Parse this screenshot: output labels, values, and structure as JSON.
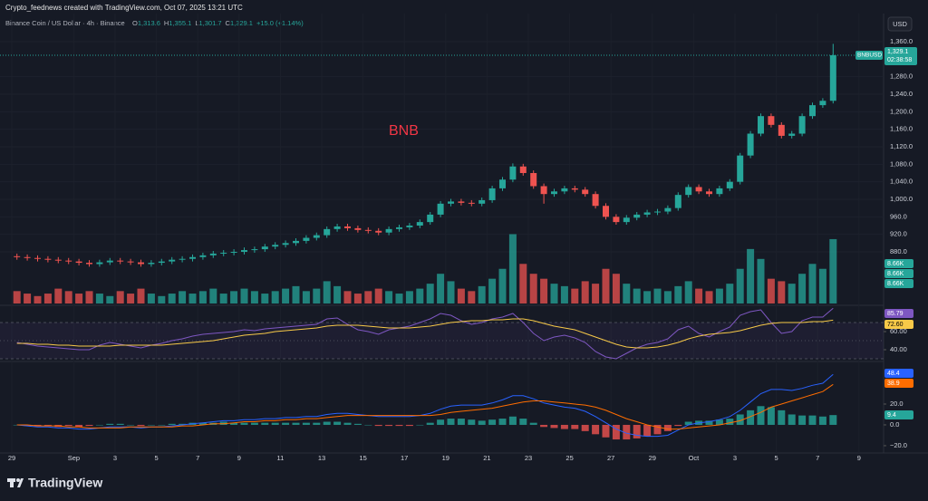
{
  "header": {
    "credit": "Crypto_feednews created with TradingView.com, Oct 07, 2025 13:21 UTC",
    "symbol": "Binance Coin / US Dollar · 4h · Binance",
    "ohlc": [
      {
        "key": "O",
        "value": "1,313.6"
      },
      {
        "key": "H",
        "value": "1,355.1"
      },
      {
        "key": "L",
        "value": "1,301.7"
      },
      {
        "key": "C",
        "value": "1,329.1"
      }
    ],
    "change": "+15.0 (+1.14%)",
    "currency": "USD"
  },
  "footer": {
    "logo": "TradingView"
  },
  "chart_data": [
    {
      "type": "candlestick",
      "annotation": "BNB",
      "up_color": "#26a69a",
      "down_color": "#ef5350",
      "categories": [
        "29",
        null,
        null,
        null,
        null,
        null,
        "Sep",
        null,
        null,
        null,
        "3",
        null,
        null,
        null,
        "5",
        null,
        null,
        null,
        "7",
        null,
        null,
        null,
        "9",
        null,
        null,
        null,
        "11",
        null,
        null,
        null,
        "13",
        null,
        null,
        null,
        "15",
        null,
        null,
        null,
        "17",
        null,
        null,
        null,
        "19",
        null,
        null,
        null,
        "21",
        null,
        null,
        null,
        "23",
        null,
        null,
        null,
        "25",
        null,
        null,
        null,
        "27",
        null,
        null,
        null,
        "29",
        null,
        null,
        null,
        "Oct",
        null,
        null,
        null,
        "3",
        null,
        null,
        null,
        "5",
        null,
        null,
        null,
        "7",
        null,
        null,
        null,
        "9",
        null
      ],
      "open": [
        870,
        868,
        866,
        864,
        862,
        860,
        858,
        855,
        852,
        856,
        860,
        858,
        856,
        852,
        855,
        858,
        862,
        864,
        868,
        872,
        876,
        878,
        880,
        884,
        886,
        892,
        896,
        900,
        905,
        912,
        918,
        932,
        938,
        934,
        930,
        928,
        924,
        932,
        936,
        940,
        948,
        965,
        990,
        995,
        992,
        990,
        998,
        1025,
        1045,
        1075,
        1060,
        1030,
        1012,
        1018,
        1025,
        1022,
        1012,
        985,
        960,
        948,
        958,
        965,
        970,
        972,
        980,
        1010,
        1028,
        1018,
        1012,
        1025,
        1040,
        1100,
        1150,
        1190,
        1170,
        1145,
        1150,
        1190,
        1215,
        1225,
        null,
        null,
        null,
        null
      ],
      "high": [
        876,
        874,
        872,
        870,
        868,
        866,
        864,
        861,
        862,
        866,
        866,
        864,
        862,
        861,
        864,
        868,
        870,
        874,
        878,
        882,
        884,
        886,
        890,
        892,
        898,
        902,
        906,
        911,
        918,
        924,
        938,
        944,
        944,
        940,
        936,
        934,
        938,
        942,
        946,
        954,
        971,
        996,
        1001,
        1001,
        998,
        1004,
        1031,
        1051,
        1082,
        1081,
        1066,
        1036,
        1024,
        1031,
        1031,
        1028,
        1018,
        991,
        966,
        964,
        971,
        976,
        978,
        986,
        1016,
        1034,
        1034,
        1024,
        1031,
        1046,
        1106,
        1156,
        1196,
        1196,
        1176,
        1156,
        1196,
        1221,
        1231,
        1355.1,
        null,
        null,
        null,
        null
      ],
      "low": [
        862,
        860,
        858,
        856,
        854,
        852,
        849,
        846,
        846,
        850,
        852,
        850,
        846,
        846,
        849,
        852,
        856,
        858,
        862,
        866,
        870,
        872,
        874,
        878,
        880,
        886,
        890,
        894,
        899,
        906,
        912,
        926,
        928,
        924,
        922,
        918,
        918,
        926,
        930,
        934,
        942,
        959,
        984,
        986,
        984,
        984,
        992,
        1019,
        1039,
        1054,
        1024,
        990,
        1006,
        1012,
        1016,
        1006,
        979,
        954,
        942,
        942,
        952,
        959,
        964,
        966,
        974,
        1004,
        1012,
        1006,
        1006,
        1019,
        1034,
        1094,
        1144,
        1164,
        1139,
        1139,
        1144,
        1184,
        1209,
        1219,
        null,
        null,
        null,
        null
      ],
      "close": [
        868,
        866,
        864,
        862,
        860,
        858,
        855,
        852,
        856,
        860,
        858,
        856,
        852,
        855,
        858,
        862,
        864,
        868,
        872,
        876,
        878,
        880,
        884,
        886,
        892,
        896,
        900,
        905,
        912,
        918,
        932,
        938,
        934,
        930,
        928,
        924,
        932,
        936,
        940,
        948,
        965,
        990,
        995,
        992,
        990,
        998,
        1025,
        1045,
        1075,
        1060,
        1030,
        1012,
        1018,
        1025,
        1022,
        1012,
        985,
        960,
        948,
        958,
        965,
        970,
        972,
        980,
        1010,
        1028,
        1018,
        1012,
        1025,
        1040,
        1100,
        1150,
        1190,
        1170,
        1145,
        1150,
        1190,
        1215,
        1225,
        1329.1,
        null,
        null,
        null,
        null
      ],
      "volume": [
        5,
        4,
        3,
        4,
        6,
        5,
        4,
        5,
        4,
        3,
        5,
        4,
        6,
        4,
        3,
        4,
        5,
        4,
        5,
        6,
        4,
        5,
        6,
        5,
        4,
        5,
        6,
        7,
        5,
        6,
        9,
        7,
        5,
        4,
        5,
        6,
        5,
        4,
        5,
        6,
        8,
        12,
        9,
        6,
        5,
        7,
        10,
        14,
        28,
        16,
        12,
        10,
        8,
        7,
        6,
        9,
        8,
        14,
        12,
        8,
        6,
        5,
        6,
        5,
        7,
        9,
        6,
        5,
        6,
        8,
        14,
        22,
        18,
        10,
        9,
        8,
        12,
        16,
        14,
        26,
        null,
        null,
        null,
        null
      ],
      "volume_lim": [
        0,
        30
      ],
      "volume_labels": [
        "8.66K",
        "8.66K",
        "8.66K"
      ],
      "ylim": [
        762,
        1418
      ],
      "yticks": [
        {
          "value": 880,
          "label": "880.0"
        },
        {
          "value": 920,
          "label": "920.0"
        },
        {
          "value": 960,
          "label": "960.0"
        },
        {
          "value": 1000,
          "label": "1,000.0"
        },
        {
          "value": 1040,
          "label": "1,040.0"
        },
        {
          "value": 1080,
          "label": "1,080.0"
        },
        {
          "value": 1120,
          "label": "1,120.0"
        },
        {
          "value": 1160,
          "label": "1,160.0"
        },
        {
          "value": 1200,
          "label": "1,200.0"
        },
        {
          "value": 1240,
          "label": "1,240.0"
        },
        {
          "value": 1280,
          "label": "1,280.0"
        },
        {
          "value": 1360,
          "label": "1,360.0"
        }
      ],
      "last_price": {
        "symbol": "BNBUSD",
        "label": "1,329.1",
        "countdown": "02:38:58"
      }
    },
    {
      "type": "line",
      "ylim": [
        28,
        86
      ],
      "yticks": [
        {
          "value": 40,
          "label": "40.00"
        },
        {
          "value": 60,
          "label": "60.00"
        }
      ],
      "bands": [
        70,
        50,
        30
      ],
      "series": [
        {
          "color": "#7e57c2",
          "last_label": "85.79",
          "values": [
            48,
            46,
            44,
            43,
            42,
            41,
            40,
            40,
            45,
            48,
            46,
            44,
            42,
            45,
            47,
            50,
            52,
            55,
            57,
            58,
            59,
            60,
            62,
            61,
            63,
            64,
            65,
            66,
            67,
            68,
            74,
            75,
            68,
            62,
            60,
            57,
            62,
            64,
            66,
            70,
            74,
            80,
            78,
            72,
            68,
            70,
            74,
            76,
            80,
            70,
            58,
            50,
            54,
            56,
            53,
            48,
            38,
            32,
            30,
            36,
            42,
            46,
            48,
            52,
            62,
            66,
            58,
            54,
            60,
            65,
            78,
            82,
            84,
            70,
            58,
            60,
            72,
            76,
            76,
            85.79,
            null,
            null,
            null,
            null
          ]
        },
        {
          "color": "#f7c948",
          "last_label": "72.60",
          "values": [
            47,
            47,
            46,
            46,
            45,
            45,
            44,
            44,
            44,
            44,
            45,
            45,
            45,
            45,
            45,
            46,
            47,
            48,
            49,
            50,
            52,
            54,
            56,
            57,
            58,
            60,
            61,
            62,
            63,
            64,
            66,
            67,
            67,
            67,
            66,
            65,
            64,
            64,
            64,
            65,
            66,
            68,
            70,
            71,
            72,
            72,
            73,
            73,
            74,
            74,
            72,
            69,
            66,
            64,
            62,
            58,
            54,
            50,
            46,
            43,
            42,
            42,
            43,
            45,
            48,
            52,
            55,
            57,
            58,
            59,
            61,
            64,
            67,
            69,
            70,
            70,
            70,
            71,
            71,
            72.6,
            null,
            null,
            null,
            null
          ]
        }
      ]
    },
    {
      "type": "macd",
      "ylim": [
        -27,
        60
      ],
      "yticks": [
        {
          "value": 20,
          "label": "20.0"
        },
        {
          "value": 0,
          "label": "0.0"
        },
        {
          "value": -20,
          "label": "−20.0"
        }
      ],
      "series": [
        {
          "color": "#2962ff",
          "last_label": "48.4",
          "values": [
            0,
            -1,
            -2,
            -2,
            -3,
            -3,
            -4,
            -4,
            -3,
            -2,
            -2,
            -2,
            -3,
            -2,
            -2,
            -1,
            0,
            1,
            2,
            3,
            4,
            4,
            5,
            5,
            6,
            6,
            7,
            7,
            8,
            8,
            10,
            11,
            11,
            10,
            9,
            8,
            8,
            8,
            8,
            9,
            11,
            15,
            18,
            19,
            19,
            19,
            21,
            24,
            28,
            28,
            25,
            21,
            19,
            17,
            16,
            13,
            8,
            2,
            -4,
            -8,
            -10,
            -11,
            -11,
            -10,
            -5,
            0,
            2,
            3,
            5,
            8,
            14,
            22,
            30,
            34,
            34,
            33,
            35,
            38,
            40,
            48.4,
            null,
            null,
            null,
            null
          ]
        },
        {
          "color": "#ff6d00",
          "last_label": "38.9",
          "values": [
            0,
            0,
            -1,
            -1,
            -1,
            -2,
            -2,
            -3,
            -3,
            -3,
            -3,
            -2,
            -2,
            -2,
            -2,
            -2,
            -1,
            -1,
            0,
            1,
            1,
            2,
            3,
            3,
            4,
            4,
            5,
            5,
            6,
            6,
            7,
            8,
            9,
            9,
            9,
            9,
            9,
            9,
            9,
            9,
            9,
            10,
            12,
            13,
            14,
            15,
            16,
            18,
            20,
            22,
            23,
            23,
            22,
            21,
            20,
            19,
            17,
            14,
            10,
            6,
            3,
            0,
            -2,
            -4,
            -4,
            -3,
            -2,
            -1,
            0,
            2,
            4,
            8,
            12,
            17,
            20,
            23,
            26,
            29,
            32,
            38.9,
            null,
            null,
            null,
            null
          ]
        }
      ],
      "histogram": {
        "up_color": "#26a69a",
        "down_color": "#ef5350",
        "last_label": "9.4",
        "values": [
          0,
          -1,
          -1,
          -1,
          -2,
          -1,
          -2,
          -1,
          0,
          1,
          1,
          0,
          -1,
          0,
          0,
          1,
          1,
          2,
          2,
          2,
          3,
          2,
          2,
          2,
          2,
          2,
          2,
          2,
          2,
          2,
          3,
          3,
          2,
          1,
          0,
          -1,
          -1,
          -1,
          -1,
          0,
          2,
          5,
          6,
          6,
          5,
          4,
          5,
          6,
          8,
          6,
          2,
          -2,
          -3,
          -4,
          -4,
          -6,
          -9,
          -12,
          -14,
          -14,
          -13,
          -11,
          -9,
          -6,
          -1,
          3,
          4,
          4,
          5,
          6,
          10,
          14,
          18,
          17,
          14,
          10,
          9,
          9,
          8,
          9.4,
          null,
          null,
          null,
          null
        ]
      }
    }
  ]
}
